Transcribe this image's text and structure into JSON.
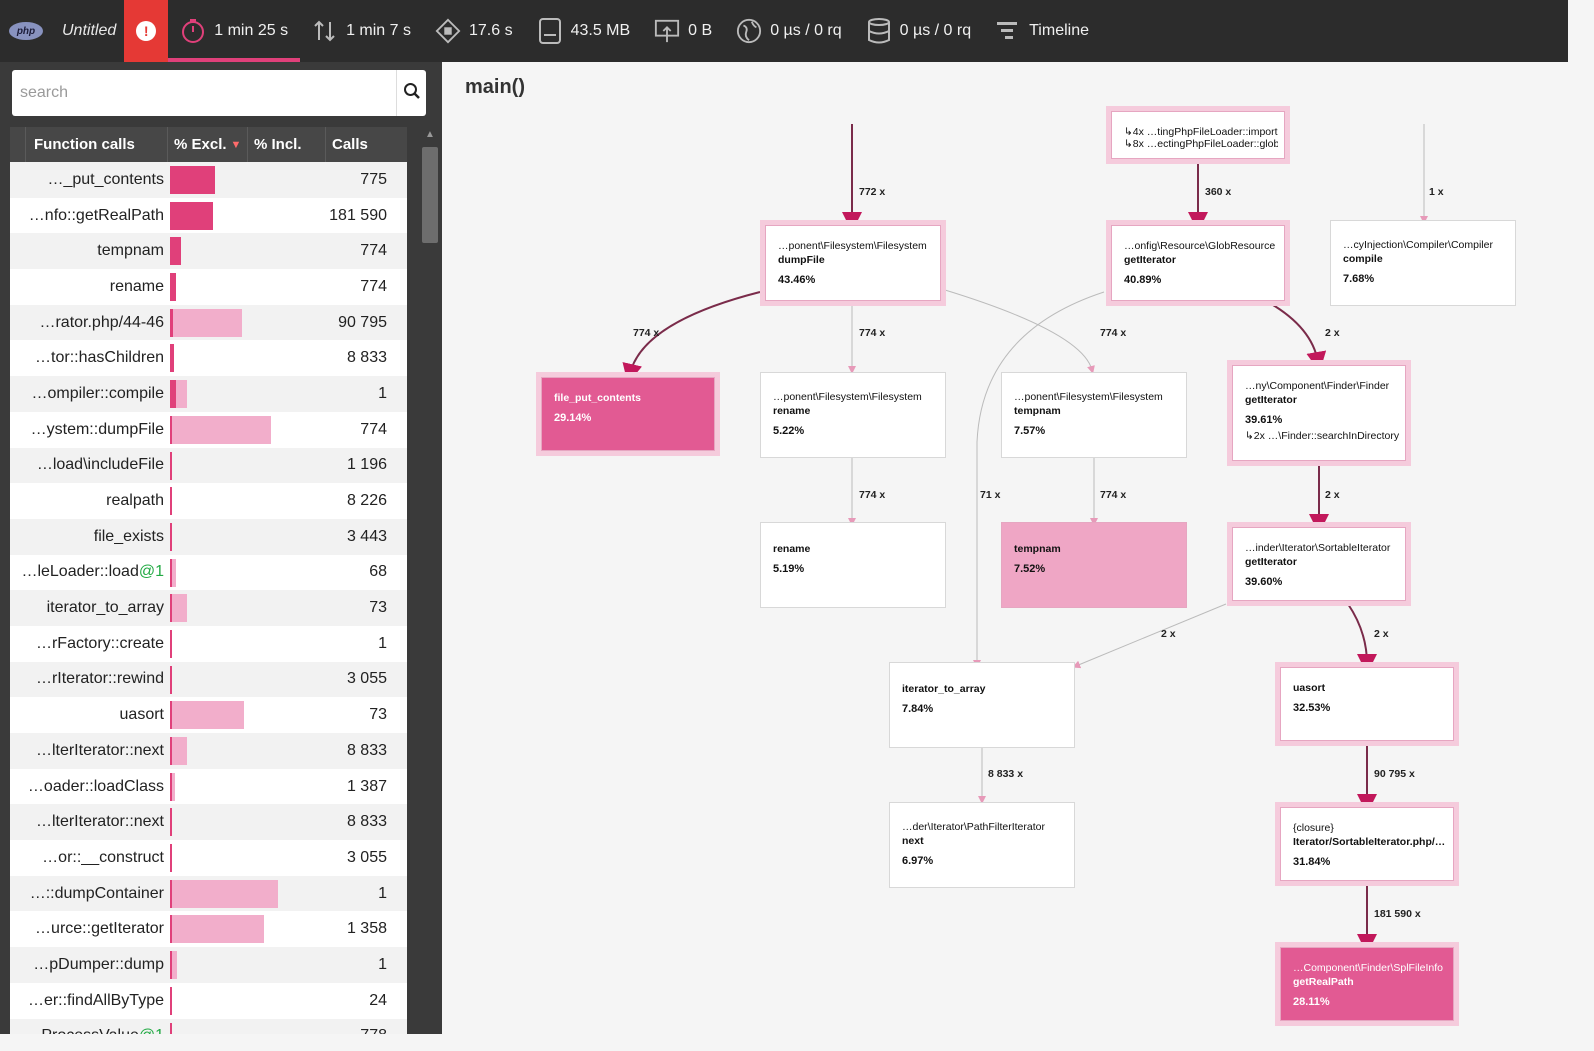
{
  "topbar": {
    "logo_text": "php",
    "title": "Untitled",
    "alert_symbol": "!",
    "metrics": [
      {
        "icon": "stopwatch-icon",
        "label": "1 min 25 s",
        "active": true
      },
      {
        "icon": "io-arrows-icon",
        "label": "1 min 7 s"
      },
      {
        "icon": "cpu-icon",
        "label": "17.6 s"
      },
      {
        "icon": "memory-icon",
        "label": "43.5 MB"
      },
      {
        "icon": "network-icon",
        "label": "0 B"
      },
      {
        "icon": "globe-icon",
        "label": "0 µs / 0 rq"
      },
      {
        "icon": "database-icon",
        "label": "0 µs / 0 rq"
      },
      {
        "icon": "timeline-icon",
        "label": "Timeline"
      }
    ]
  },
  "sidebar": {
    "search_placeholder": "search",
    "columns": {
      "function": "Function calls",
      "excl": "% Excl.",
      "incl": "% Incl.",
      "calls": "Calls"
    },
    "rows": [
      {
        "fn": "…_put_contents",
        "suffix": "",
        "calls": "775",
        "excl": 0.28,
        "incl": 0
      },
      {
        "fn": "…nfo::getRealPath",
        "suffix": "",
        "calls": "181 590",
        "excl": 0.27,
        "incl": 0
      },
      {
        "fn": "tempnam",
        "suffix": "",
        "calls": "774",
        "excl": 0.07,
        "incl": 0
      },
      {
        "fn": "rename",
        "suffix": "",
        "calls": "774",
        "excl": 0.04,
        "incl": 0
      },
      {
        "fn": "…rator.php/44-46",
        "suffix": "",
        "calls": "90 795",
        "excl": 0.02,
        "incl": 0.3
      },
      {
        "fn": "…tor::hasChildren",
        "suffix": "",
        "calls": "8 833",
        "excl": 0.025,
        "incl": 0
      },
      {
        "fn": "…ompiler::compile",
        "suffix": "",
        "calls": "1",
        "excl": 0.04,
        "incl": 0.07
      },
      {
        "fn": "…ystem::dumpFile",
        "suffix": "",
        "calls": "774",
        "excl": 0.01,
        "incl": 0.42
      },
      {
        "fn": "…load\\includeFile",
        "suffix": "",
        "calls": "1 196",
        "excl": 0.012,
        "incl": 0
      },
      {
        "fn": "realpath",
        "suffix": "",
        "calls": "8 226",
        "excl": 0.012,
        "incl": 0
      },
      {
        "fn": "file_exists",
        "suffix": "",
        "calls": "3 443",
        "excl": 0.012,
        "incl": 0
      },
      {
        "fn": "…leLoader::load",
        "suffix": "@1",
        "calls": "68",
        "excl": 0.01,
        "incl": 0.025
      },
      {
        "fn": "iterator_to_array",
        "suffix": "",
        "calls": "73",
        "excl": 0.01,
        "incl": 0.07
      },
      {
        "fn": "…rFactory::create",
        "suffix": "",
        "calls": "1",
        "excl": 0.01,
        "incl": 0
      },
      {
        "fn": "…rIterator::rewind",
        "suffix": "",
        "calls": "3 055",
        "excl": 0.01,
        "incl": 0
      },
      {
        "fn": "uasort",
        "suffix": "",
        "calls": "73",
        "excl": 0.01,
        "incl": 0.31
      },
      {
        "fn": "…lterIterator::next",
        "suffix": "",
        "calls": "8 833",
        "excl": 0.01,
        "incl": 0.07
      },
      {
        "fn": "…oader::loadClass",
        "suffix": "",
        "calls": "1 387",
        "excl": 0.01,
        "incl": 0.02
      },
      {
        "fn": "…lterIterator::next",
        "suffix": "",
        "calls": "8 833",
        "excl": 0.01,
        "incl": 0
      },
      {
        "fn": "…or::__construct",
        "suffix": "",
        "calls": "3 055",
        "excl": 0.01,
        "incl": 0
      },
      {
        "fn": "…::dumpContainer",
        "suffix": "",
        "calls": "1",
        "excl": 0.0,
        "incl": 0.45
      },
      {
        "fn": "…urce::getIterator",
        "suffix": "",
        "calls": "1 358",
        "excl": 0.0,
        "incl": 0.39
      },
      {
        "fn": "…pDumper::dump",
        "suffix": "",
        "calls": "1",
        "excl": 0.0,
        "incl": 0.03
      },
      {
        "fn": "…er::findAllByType",
        "suffix": "",
        "calls": "24",
        "excl": 0.01,
        "incl": 0
      },
      {
        "fn": "…ProcessValue",
        "suffix": "@1",
        "calls": "778",
        "excl": 0.01,
        "incl": 0
      }
    ]
  },
  "graph": {
    "title": "main()",
    "top_node": {
      "line1": "↳4x …tingPhpFileLoader::import",
      "line2": "↳8x …ectingPhpFileLoader::glob"
    },
    "nodes": {
      "dumpfile": {
        "ns": "…ponent\\Filesystem\\Filesystem",
        "fn": "dumpFile",
        "pct": "43.46%"
      },
      "globres": {
        "ns": "…onfig\\Resource\\GlobResource",
        "fn": "getIterator",
        "pct": "40.89%"
      },
      "compile": {
        "ns": "…cyInjection\\Compiler\\Compiler",
        "fn": "compile",
        "pct": "7.68%"
      },
      "fpc": {
        "ns": "file_put_contents",
        "pct": "29.14%"
      },
      "rename1": {
        "ns": "…ponent\\Filesystem\\Filesystem",
        "fn": "rename",
        "pct": "5.22%"
      },
      "tempnam1": {
        "ns": "…ponent\\Filesystem\\Filesystem",
        "fn": "tempnam",
        "pct": "7.57%"
      },
      "finder": {
        "ns": "…ny\\Component\\Finder\\Finder",
        "fn": "getIterator",
        "pct": "39.61%",
        "extra": "↳2x …\\Finder::searchInDirectory"
      },
      "rename2": {
        "fn": "rename",
        "pct": "5.19%"
      },
      "tempnam2": {
        "fn": "tempnam",
        "pct": "7.52%"
      },
      "sortable": {
        "ns": "…inder\\Iterator\\SortableIterator",
        "fn": "getIterator",
        "pct": "39.60%"
      },
      "ita": {
        "fn": "iterator_to_array",
        "pct": "7.84%"
      },
      "uasort": {
        "fn": "uasort",
        "pct": "32.53%"
      },
      "pathfilter": {
        "ns": "…der\\Iterator\\PathFilterIterator",
        "fn": "next",
        "pct": "6.97%"
      },
      "closure": {
        "ns": "{closure}",
        "fn": "Iterator/SortableIterator.php/…",
        "pct": "31.84%"
      },
      "splfile": {
        "ns": "…Component\\Finder\\SplFileInfo",
        "fn": "getRealPath",
        "pct": "28.11%"
      }
    },
    "edges": {
      "e772": "772 x",
      "e360": "360 x",
      "e1": "1 x",
      "e774a": "774 x",
      "e774b": "774 x",
      "e774c": "774 x",
      "e2a": "2 x",
      "e774d": "774 x",
      "e71": "71 x",
      "e774e": "774 x",
      "e2b": "2 x",
      "e2c": "2 x",
      "e2d": "2 x",
      "e8833": "8 833 x",
      "e90795": "90 795 x",
      "e181590": "181 590 x"
    }
  }
}
